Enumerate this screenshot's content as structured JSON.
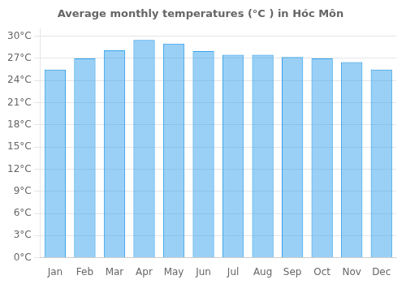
{
  "chart_data": {
    "type": "bar",
    "title": "Average monthly temperatures (°C ) in Hóc Môn",
    "categories": [
      "Jan",
      "Feb",
      "Mar",
      "Apr",
      "May",
      "Jun",
      "Jul",
      "Aug",
      "Sep",
      "Oct",
      "Nov",
      "Dec"
    ],
    "values": [
      25.5,
      27.0,
      28.1,
      29.5,
      29.0,
      28.0,
      27.5,
      27.5,
      27.2,
      27.0,
      26.5,
      25.5
    ],
    "ylim": [
      0,
      31
    ],
    "yticks": [
      {
        "value": 0,
        "label": "0°C"
      },
      {
        "value": 3,
        "label": "3°C"
      },
      {
        "value": 6,
        "label": "6°C"
      },
      {
        "value": 9,
        "label": "9°C"
      },
      {
        "value": 12,
        "label": "12°C"
      },
      {
        "value": 15,
        "label": "15°C"
      },
      {
        "value": 18,
        "label": "18°C"
      },
      {
        "value": 21,
        "label": "21°C"
      },
      {
        "value": 24,
        "label": "24°C"
      },
      {
        "value": 27,
        "label": "27°C"
      },
      {
        "value": 30,
        "label": "30°C"
      }
    ],
    "grid": true
  }
}
